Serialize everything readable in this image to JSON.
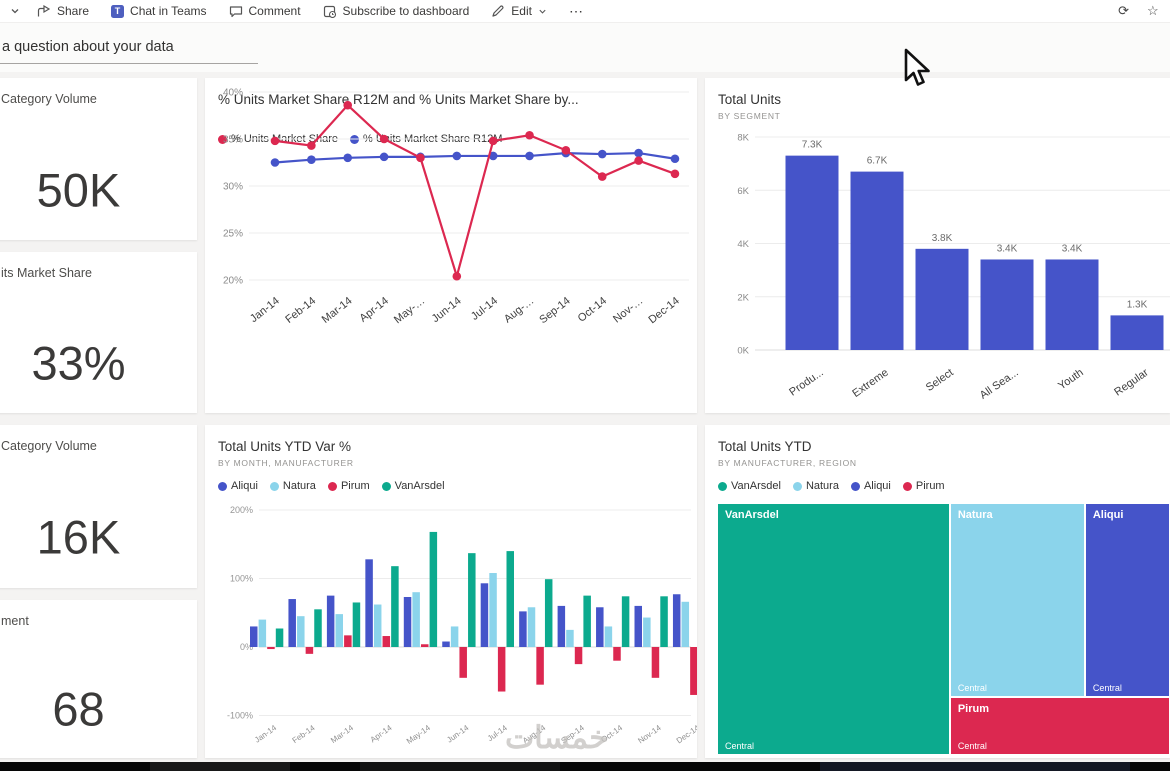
{
  "toolbar": {
    "share": "Share",
    "chat_in_teams": "Chat in Teams",
    "comment": "Comment",
    "subscribe": "Subscribe to dashboard",
    "edit": "Edit",
    "more_glyph": "⋯",
    "refresh_glyph": "⟳",
    "star_glyph": "☆",
    "teams_glyph": "T"
  },
  "qa": {
    "placeholder": "a question about your data"
  },
  "cards": [
    {
      "title": "Category Volume",
      "value": "50K"
    },
    {
      "title": "its Market Share",
      "value": "33%"
    },
    {
      "title": "Category Volume",
      "value": "16K"
    },
    {
      "title": "ment",
      "value": "68"
    }
  ],
  "watermark": {
    "text": "خمسات"
  },
  "colors": {
    "blue": "#4554c9",
    "light_blue": "#8bd4eb",
    "red": "#dc2850",
    "teal": "#0caa8e"
  },
  "chart_data": [
    {
      "id": "line",
      "type": "line",
      "title": "% Units Market Share R12M and % Units Market Share by...",
      "x": [
        "Jan-14",
        "Feb-14",
        "Mar-14",
        "Apr-14",
        "May-…",
        "Jun-14",
        "Jul-14",
        "Aug-…",
        "Sep-14",
        "Oct-14",
        "Nov-…",
        "Dec-14"
      ],
      "ylim": [
        20,
        40
      ],
      "yticks": [
        40,
        35,
        30,
        25,
        20
      ],
      "ytick_labels": [
        "40%",
        "35%",
        "30%",
        "25%",
        "20%"
      ],
      "grid": true,
      "legend_position": "top",
      "series": [
        {
          "name": "% Units Market Share",
          "color": "#dc2850",
          "values": [
            34.8,
            34.3,
            38.6,
            35.0,
            33.0,
            20.4,
            34.8,
            35.4,
            33.8,
            31.0,
            32.7,
            31.3
          ]
        },
        {
          "name": "% Units Market Share R12M",
          "color": "#4554c9",
          "values": [
            32.5,
            32.8,
            33.0,
            33.1,
            33.1,
            33.2,
            33.2,
            33.2,
            33.5,
            33.4,
            33.5,
            32.9
          ]
        }
      ]
    },
    {
      "id": "bar",
      "type": "bar",
      "title": "Total Units",
      "subtitle": "BY SEGMENT",
      "categories": [
        "Produ...",
        "Extreme",
        "Select",
        "All Sea...",
        "Youth",
        "Regular"
      ],
      "values": [
        7300,
        6700,
        3800,
        3400,
        3400,
        1300
      ],
      "value_labels": [
        "7.3K",
        "6.7K",
        "3.8K",
        "3.4K",
        "3.4K",
        "1.3K"
      ],
      "ylim": [
        0,
        8000
      ],
      "yticks": [
        8000,
        6000,
        4000,
        2000,
        0
      ],
      "ytick_labels": [
        "8K",
        "6K",
        "4K",
        "2K",
        "0K"
      ],
      "grid": true,
      "color": "#4554c9"
    },
    {
      "id": "var",
      "type": "bar-grouped",
      "title": "Total Units YTD Var %",
      "subtitle": "BY MONTH, MANUFACTURER",
      "categories": [
        "Jan-14",
        "Feb-14",
        "Mar-14",
        "Apr-14",
        "May-14",
        "Jun-14",
        "Jul-14",
        "Aug-14",
        "Sep-14",
        "Oct-14",
        "Nov-14",
        "Dec-14"
      ],
      "ylim": [
        -100,
        200
      ],
      "yticks": [
        200,
        100,
        0,
        -100
      ],
      "ytick_labels": [
        "200%",
        "100%",
        "0%",
        "-100%"
      ],
      "grid": true,
      "legend_position": "top",
      "series": [
        {
          "name": "Aliqui",
          "color": "#4554c9",
          "values": [
            30,
            70,
            75,
            128,
            73,
            8,
            93,
            52,
            60,
            58,
            60,
            77
          ]
        },
        {
          "name": "Natura",
          "color": "#8bd4eb",
          "values": [
            40,
            45,
            48,
            62,
            80,
            30,
            108,
            58,
            25,
            30,
            43,
            66
          ]
        },
        {
          "name": "Pirum",
          "color": "#dc2850",
          "values": [
            -3,
            -10,
            17,
            16,
            4,
            -45,
            -65,
            -55,
            -25,
            -20,
            -45,
            -70
          ]
        },
        {
          "name": "VanArsdel",
          "color": "#0caa8e",
          "values": [
            27,
            55,
            65,
            118,
            168,
            137,
            140,
            99,
            75,
            74,
            74,
            47
          ]
        }
      ]
    },
    {
      "id": "treemap",
      "type": "treemap",
      "title": "Total Units YTD",
      "subtitle": "BY MANUFACTURER, REGION",
      "legend": [
        "VanArsdel",
        "Natura",
        "Aliqui",
        "Pirum"
      ],
      "legend_colors": [
        "#0caa8e",
        "#8bd4eb",
        "#4554c9",
        "#dc2850"
      ],
      "blocks": [
        {
          "name": "VanArsdel",
          "region": "Central",
          "color": "#0caa8e",
          "x": 0,
          "y": 0,
          "w": 51.4,
          "h": 100
        },
        {
          "name": "Natura",
          "region": "Central",
          "color": "#8bd4eb",
          "x": 51.4,
          "y": 0,
          "w": 29.8,
          "h": 77
        },
        {
          "name": "Aliqui",
          "region": "Central",
          "color": "#4554c9",
          "x": 81.2,
          "y": 0,
          "w": 18.8,
          "h": 77
        },
        {
          "name": "Pirum",
          "region": "Central",
          "color": "#dc2850",
          "x": 51.4,
          "y": 77,
          "w": 48.6,
          "h": 23
        }
      ]
    }
  ]
}
